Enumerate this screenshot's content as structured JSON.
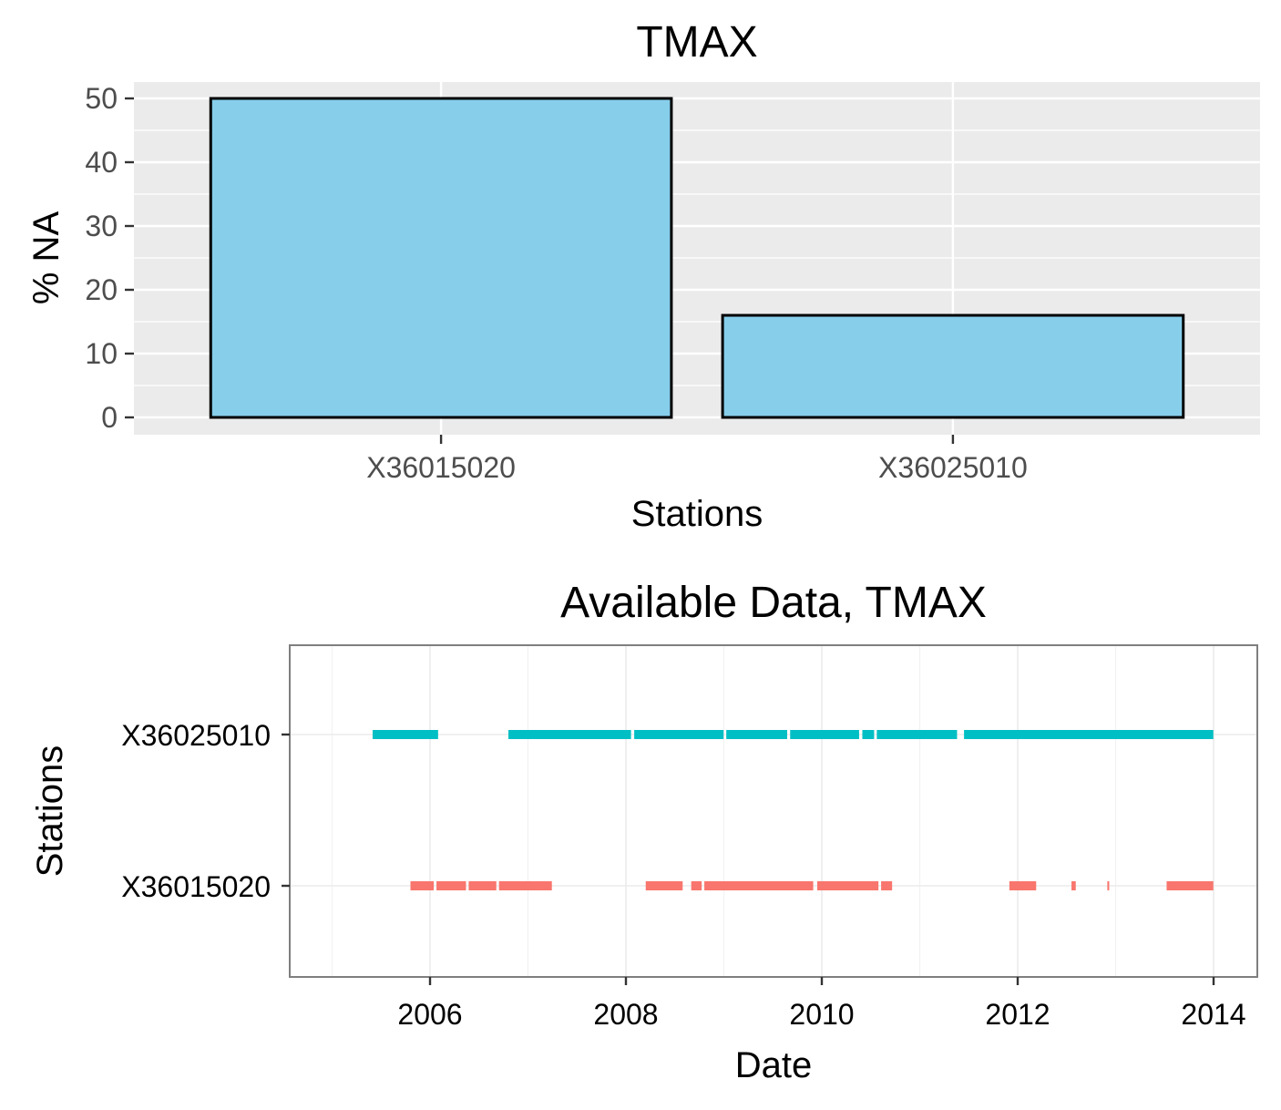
{
  "chart_data": [
    {
      "type": "bar",
      "title": "TMAX",
      "xlabel": "Stations",
      "ylabel": "% NA",
      "categories": [
        "X36015020",
        "X36025010"
      ],
      "values": [
        50,
        16
      ],
      "ylim": [
        0,
        50
      ],
      "yticks": [
        0,
        10,
        20,
        30,
        40,
        50
      ],
      "grid": true,
      "colors": {
        "fill": "#87CEEB",
        "outline": "#000000",
        "panel": "#EBEBEB"
      }
    },
    {
      "type": "scatter",
      "title": "Available Data, TMAX",
      "xlabel": "Date",
      "ylabel": "Stations",
      "xlim": [
        "2004-08-01",
        "2014-06-01"
      ],
      "xticks": [
        "2006",
        "2008",
        "2010",
        "2012",
        "2014"
      ],
      "categories": [
        "X36015020",
        "X36025010"
      ],
      "grid": true,
      "series": [
        {
          "station": "X36025010",
          "color": "#00BFC4",
          "segments": [
            [
              "2005-06-01",
              "2006-01-31"
            ],
            [
              "2006-10-20",
              "2008-01-20"
            ],
            [
              "2008-02-01",
              "2008-12-31"
            ],
            [
              "2009-01-10",
              "2009-08-25"
            ],
            [
              "2009-09-05",
              "2010-05-20"
            ],
            [
              "2010-06-01",
              "2010-07-15"
            ],
            [
              "2010-07-25",
              "2011-05-20"
            ],
            [
              "2011-06-15",
              "2013-12-31"
            ]
          ]
        },
        {
          "station": "X36015020",
          "color": "#F8766D",
          "segments": [
            [
              "2005-10-20",
              "2006-01-15"
            ],
            [
              "2006-01-25",
              "2006-05-15"
            ],
            [
              "2006-05-25",
              "2006-09-05"
            ],
            [
              "2006-09-15",
              "2007-03-31"
            ],
            [
              "2008-03-15",
              "2008-07-31"
            ],
            [
              "2008-09-01",
              "2008-10-10"
            ],
            [
              "2008-10-20",
              "2009-11-30"
            ],
            [
              "2009-12-15",
              "2010-07-31"
            ],
            [
              "2010-08-10",
              "2010-09-20"
            ],
            [
              "2011-12-01",
              "2012-03-10"
            ],
            [
              "2012-07-20",
              "2012-08-05"
            ],
            [
              "2012-12-01",
              "2012-12-08"
            ],
            [
              "2013-07-10",
              "2013-12-31"
            ]
          ]
        }
      ]
    }
  ]
}
